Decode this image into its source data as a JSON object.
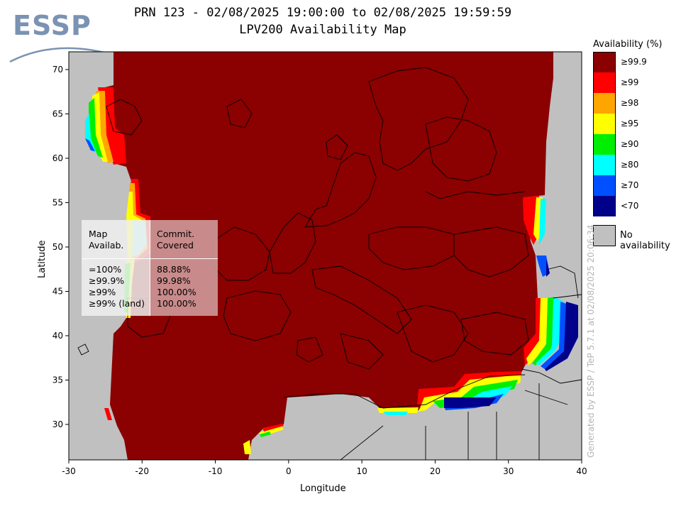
{
  "logo": {
    "text": "ESSP"
  },
  "title": {
    "line1": "PRN 123 - 02/08/2025 19:00:00 to 02/08/2025 19:59:59",
    "line2": "LPV200 Availability Map"
  },
  "axes": {
    "xlabel": "Longitude",
    "ylabel": "Latitude",
    "xticks": [
      "-30",
      "-20",
      "-10",
      "0",
      "10",
      "20",
      "30",
      "40"
    ],
    "yticks": [
      "70",
      "65",
      "60",
      "55",
      "50",
      "45",
      "40",
      "35",
      "30"
    ],
    "xlim": [
      -30,
      40
    ],
    "ylim": [
      26,
      72
    ]
  },
  "legend": {
    "title": "Availability (%)",
    "items": [
      {
        "label": "≥99.9",
        "color": "#8b0000"
      },
      {
        "label": "≥99",
        "color": "#ff0000"
      },
      {
        "label": "≥98",
        "color": "#ffa500"
      },
      {
        "label": "≥95",
        "color": "#ffff00"
      },
      {
        "label": "≥90",
        "color": "#00ee00"
      },
      {
        "label": "≥80",
        "color": "#00ffff"
      },
      {
        "label": "≥70",
        "color": "#0050ff"
      },
      {
        "label": "<70",
        "color": "#00008b"
      }
    ],
    "no_availability": {
      "label": "No availability",
      "color": "#c0c0c0"
    }
  },
  "stats_table": {
    "header_col1": [
      "Map",
      "Availab."
    ],
    "header_col2": [
      "Commit.",
      "Covered"
    ],
    "rows": [
      {
        "map": "=100%",
        "covered": "88.88%"
      },
      {
        "map": "≥99.9%",
        "covered": "99.98%"
      },
      {
        "map": "≥99%",
        "covered": "100.00%"
      },
      {
        "map": "≥99% (land)",
        "covered": "100.00%"
      }
    ]
  },
  "watermark": "Generated by ESSP / TeP 5.7.1 at 02/08/2025 20:06:34"
}
